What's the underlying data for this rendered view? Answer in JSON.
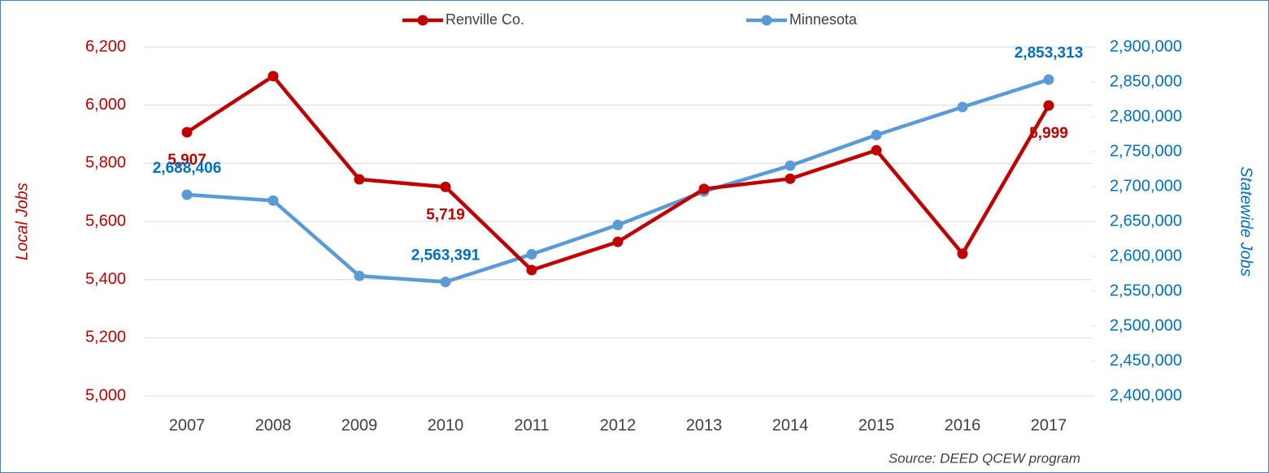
{
  "chart_data": {
    "type": "line",
    "categories": [
      "2007",
      "2008",
      "2009",
      "2010",
      "2011",
      "2012",
      "2013",
      "2014",
      "2015",
      "2016",
      "2017"
    ],
    "series": [
      {
        "name": "Renville Co.",
        "color": "#c00000",
        "axis": "y",
        "values": [
          5907,
          6100,
          5745,
          5719,
          5433,
          5530,
          5712,
          5747,
          5845,
          5489,
          5999
        ],
        "value_labels": [
          "5,907",
          null,
          null,
          "5,719",
          null,
          null,
          null,
          null,
          null,
          null,
          "5,999"
        ]
      },
      {
        "name": "Minnesota",
        "color": "#5b9bd5",
        "axis": "y2",
        "values": [
          2688406,
          2680000,
          2572000,
          2563391,
          2603000,
          2645000,
          2693000,
          2730000,
          2774000,
          2814000,
          2853313
        ],
        "value_labels": [
          "2,688,406",
          null,
          null,
          "2,563,391",
          null,
          null,
          null,
          null,
          null,
          null,
          "2,853,313"
        ]
      }
    ],
    "ylabel": "Local Jobs",
    "y2label": "Statewide Jobs",
    "ylim": [
      5000,
      6200
    ],
    "yticks": [
      {
        "value": 5000,
        "label": "5,000"
      },
      {
        "value": 5200,
        "label": "5,200"
      },
      {
        "value": 5400,
        "label": "5,400"
      },
      {
        "value": 5600,
        "label": "5,600"
      },
      {
        "value": 5800,
        "label": "5,800"
      },
      {
        "value": 6000,
        "label": "6,000"
      },
      {
        "value": 6200,
        "label": "6,200"
      }
    ],
    "y2lim": [
      2400000,
      2900000
    ],
    "y2ticks": [
      {
        "value": 2400000,
        "label": "2,400,000"
      },
      {
        "value": 2450000,
        "label": "2,450,000"
      },
      {
        "value": 2500000,
        "label": "2,500,000"
      },
      {
        "value": 2550000,
        "label": "2,550,000"
      },
      {
        "value": 2600000,
        "label": "2,600,000"
      },
      {
        "value": 2650000,
        "label": "2,650,000"
      },
      {
        "value": 2700000,
        "label": "2,700,000"
      },
      {
        "value": 2750000,
        "label": "2,750,000"
      },
      {
        "value": 2800000,
        "label": "2,800,000"
      },
      {
        "value": 2850000,
        "label": "2,850,000"
      },
      {
        "value": 2900000,
        "label": "2,900,000"
      }
    ],
    "grid": true,
    "legend": "top",
    "source": "Source: DEED QCEW program"
  }
}
